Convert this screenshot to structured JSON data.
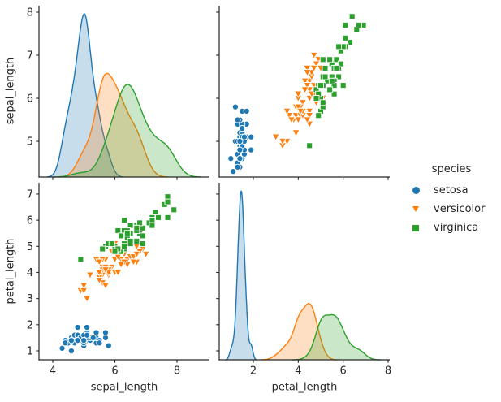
{
  "style": {
    "background": "#ffffff",
    "text_color": "#262626",
    "spine_color": "#262626"
  },
  "legend": {
    "title": "species",
    "items": [
      {
        "label": "setosa",
        "marker": "circle",
        "color": "#1f77b4"
      },
      {
        "label": "versicolor",
        "marker": "triangle-down",
        "color": "#ff7f0e"
      },
      {
        "label": "virginica",
        "marker": "square",
        "color": "#2ca02c"
      }
    ]
  },
  "chart_data": {
    "type": "scatter-matrix (seaborn pairplot: scatter off-diagonal, filled KDE on diagonal)",
    "variables": [
      "sepal_length",
      "petal_length"
    ],
    "x_axes": {
      "sepal_length": {
        "label": "sepal_length",
        "ticks": [
          4,
          6,
          8
        ],
        "lim": [
          3.556,
          9.046
        ]
      },
      "petal_length": {
        "label": "petal_length",
        "ticks": [
          2,
          4,
          6,
          8
        ],
        "lim": [
          0.482,
          8.072
        ]
      }
    },
    "y_axes": {
      "sepal_length": {
        "label": "sepal_length",
        "ticks": [
          5,
          6,
          7,
          8
        ],
        "lim": [
          4.17,
          8.151
        ]
      },
      "petal_length": {
        "label": "petal_length",
        "ticks": [
          1,
          2,
          3,
          4,
          5,
          6,
          7
        ],
        "lim": [
          0.658,
          7.434
        ]
      }
    },
    "panels": [
      {
        "id": "top-left",
        "kind": "kde",
        "var": "sepal_length"
      },
      {
        "id": "top-right",
        "kind": "scatter",
        "x": "petal_length",
        "y": "sepal_length"
      },
      {
        "id": "bottom-left",
        "kind": "scatter",
        "x": "sepal_length",
        "y": "petal_length"
      },
      {
        "id": "bottom-right",
        "kind": "kde",
        "var": "petal_length"
      }
    ],
    "kde": {
      "bw_method": "scott",
      "cut": 3,
      "fill_alpha": 0.25
    },
    "series": [
      {
        "name": "setosa",
        "color": "#1f77b4",
        "marker": "circle",
        "columns": [
          "sepal_length",
          "petal_length"
        ],
        "points": [
          [
            5.1,
            1.4
          ],
          [
            4.9,
            1.4
          ],
          [
            4.7,
            1.3
          ],
          [
            4.6,
            1.5
          ],
          [
            5.0,
            1.4
          ],
          [
            5.4,
            1.7
          ],
          [
            4.6,
            1.4
          ],
          [
            5.0,
            1.5
          ],
          [
            4.4,
            1.4
          ],
          [
            4.9,
            1.5
          ],
          [
            5.4,
            1.5
          ],
          [
            4.8,
            1.6
          ],
          [
            4.8,
            1.4
          ],
          [
            4.3,
            1.1
          ],
          [
            5.8,
            1.2
          ],
          [
            5.7,
            1.5
          ],
          [
            5.4,
            1.3
          ],
          [
            5.1,
            1.4
          ],
          [
            5.7,
            1.7
          ],
          [
            5.1,
            1.5
          ],
          [
            5.4,
            1.7
          ],
          [
            5.1,
            1.5
          ],
          [
            4.6,
            1.0
          ],
          [
            5.1,
            1.7
          ],
          [
            4.8,
            1.9
          ],
          [
            5.0,
            1.6
          ],
          [
            5.0,
            1.6
          ],
          [
            5.2,
            1.5
          ],
          [
            5.2,
            1.4
          ],
          [
            4.7,
            1.6
          ],
          [
            4.8,
            1.6
          ],
          [
            5.4,
            1.5
          ],
          [
            5.2,
            1.5
          ],
          [
            5.5,
            1.4
          ],
          [
            4.9,
            1.5
          ],
          [
            5.0,
            1.2
          ],
          [
            5.5,
            1.3
          ],
          [
            4.9,
            1.5
          ],
          [
            4.4,
            1.3
          ],
          [
            5.1,
            1.5
          ],
          [
            5.0,
            1.3
          ],
          [
            4.5,
            1.3
          ],
          [
            4.4,
            1.3
          ],
          [
            5.0,
            1.6
          ],
          [
            5.1,
            1.9
          ],
          [
            4.8,
            1.4
          ],
          [
            5.1,
            1.6
          ],
          [
            4.6,
            1.4
          ],
          [
            5.3,
            1.5
          ],
          [
            5.0,
            1.4
          ]
        ]
      },
      {
        "name": "versicolor",
        "color": "#ff7f0e",
        "marker": "triangle-down",
        "columns": [
          "sepal_length",
          "petal_length"
        ],
        "points": [
          [
            7.0,
            4.7
          ],
          [
            6.4,
            4.5
          ],
          [
            6.9,
            4.9
          ],
          [
            5.5,
            4.0
          ],
          [
            6.5,
            4.6
          ],
          [
            5.7,
            4.5
          ],
          [
            6.3,
            4.7
          ],
          [
            4.9,
            3.3
          ],
          [
            6.6,
            4.6
          ],
          [
            5.2,
            3.9
          ],
          [
            5.0,
            3.5
          ],
          [
            5.9,
            4.2
          ],
          [
            6.0,
            4.0
          ],
          [
            6.1,
            4.7
          ],
          [
            5.6,
            3.6
          ],
          [
            6.7,
            4.4
          ],
          [
            5.6,
            4.5
          ],
          [
            5.8,
            4.1
          ],
          [
            6.2,
            4.5
          ],
          [
            5.6,
            3.9
          ],
          [
            5.9,
            4.8
          ],
          [
            6.1,
            4.0
          ],
          [
            6.3,
            4.9
          ],
          [
            6.1,
            4.7
          ],
          [
            6.4,
            4.3
          ],
          [
            6.6,
            4.4
          ],
          [
            6.8,
            4.8
          ],
          [
            6.7,
            5.0
          ],
          [
            6.0,
            4.5
          ],
          [
            5.7,
            3.5
          ],
          [
            5.5,
            3.8
          ],
          [
            5.5,
            3.7
          ],
          [
            5.8,
            3.9
          ],
          [
            6.0,
            5.1
          ],
          [
            5.4,
            4.5
          ],
          [
            6.0,
            4.5
          ],
          [
            6.7,
            4.7
          ],
          [
            6.3,
            4.4
          ],
          [
            5.6,
            4.1
          ],
          [
            5.5,
            4.0
          ],
          [
            5.5,
            4.4
          ],
          [
            6.1,
            4.6
          ],
          [
            5.8,
            4.0
          ],
          [
            5.0,
            3.3
          ],
          [
            5.6,
            4.2
          ],
          [
            5.7,
            4.2
          ],
          [
            5.7,
            4.2
          ],
          [
            6.2,
            4.3
          ],
          [
            5.1,
            3.0
          ],
          [
            5.7,
            4.1
          ]
        ]
      },
      {
        "name": "virginica",
        "color": "#2ca02c",
        "marker": "square",
        "columns": [
          "sepal_length",
          "petal_length"
        ],
        "points": [
          [
            6.3,
            6.0
          ],
          [
            5.8,
            5.1
          ],
          [
            7.1,
            5.9
          ],
          [
            6.3,
            5.6
          ],
          [
            6.5,
            5.8
          ],
          [
            7.6,
            6.6
          ],
          [
            4.9,
            4.5
          ],
          [
            7.3,
            6.3
          ],
          [
            6.7,
            5.8
          ],
          [
            7.2,
            6.1
          ],
          [
            6.5,
            5.1
          ],
          [
            6.4,
            5.3
          ],
          [
            6.8,
            5.5
          ],
          [
            5.7,
            5.0
          ],
          [
            5.8,
            5.1
          ],
          [
            6.4,
            5.3
          ],
          [
            6.5,
            5.5
          ],
          [
            7.7,
            6.7
          ],
          [
            7.7,
            6.9
          ],
          [
            6.0,
            5.0
          ],
          [
            6.9,
            5.7
          ],
          [
            5.6,
            4.9
          ],
          [
            7.7,
            6.7
          ],
          [
            6.3,
            4.9
          ],
          [
            6.7,
            5.7
          ],
          [
            7.2,
            6.0
          ],
          [
            6.2,
            4.8
          ],
          [
            6.1,
            4.9
          ],
          [
            6.4,
            5.6
          ],
          [
            7.2,
            5.8
          ],
          [
            7.4,
            6.1
          ],
          [
            7.9,
            6.4
          ],
          [
            6.4,
            5.6
          ],
          [
            6.3,
            5.1
          ],
          [
            6.1,
            5.6
          ],
          [
            7.7,
            6.1
          ],
          [
            6.3,
            5.6
          ],
          [
            6.4,
            5.5
          ],
          [
            6.0,
            4.8
          ],
          [
            6.9,
            5.4
          ],
          [
            6.7,
            5.6
          ],
          [
            6.9,
            5.1
          ],
          [
            5.8,
            5.1
          ],
          [
            6.8,
            5.9
          ],
          [
            6.7,
            5.7
          ],
          [
            6.7,
            5.2
          ],
          [
            6.3,
            5.0
          ],
          [
            6.5,
            5.2
          ],
          [
            6.2,
            5.4
          ],
          [
            5.9,
            5.1
          ]
        ]
      }
    ]
  }
}
